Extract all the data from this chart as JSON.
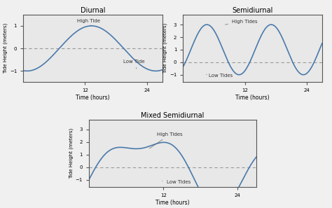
{
  "title1": "Diurnal",
  "title2": "Semidiurnal",
  "title3": "Mixed Semidiurnal",
  "xlabel": "Time (hours)",
  "ylabel": "Tide Height (meters)",
  "line_color": "#4a7aab",
  "background_color": "#f0f0f0",
  "axes_bg": "#e8e8e8",
  "dashes_color": "#999999",
  "annotation_color": "#333333",
  "xticks": [
    12,
    24
  ],
  "xlim": [
    0,
    27
  ],
  "ylim1": [
    -1.5,
    3.5
  ],
  "ylim2": [
    -1.5,
    3.5
  ],
  "ylim3": [
    -1.5,
    3.5
  ],
  "yticks1": [
    -1,
    0,
    1
  ],
  "yticks2": [
    -1,
    0,
    1,
    2,
    3
  ],
  "yticks3": [
    -1,
    0,
    1,
    2,
    3
  ],
  "high_tide_label1": "High Tide",
  "low_tide_label1": "Low Tide",
  "high_tide_label2": "High Tides",
  "low_tide_label2": "Low Tides",
  "high_tide_label3": "High Tides",
  "low_tide_label3": "Low Tides"
}
